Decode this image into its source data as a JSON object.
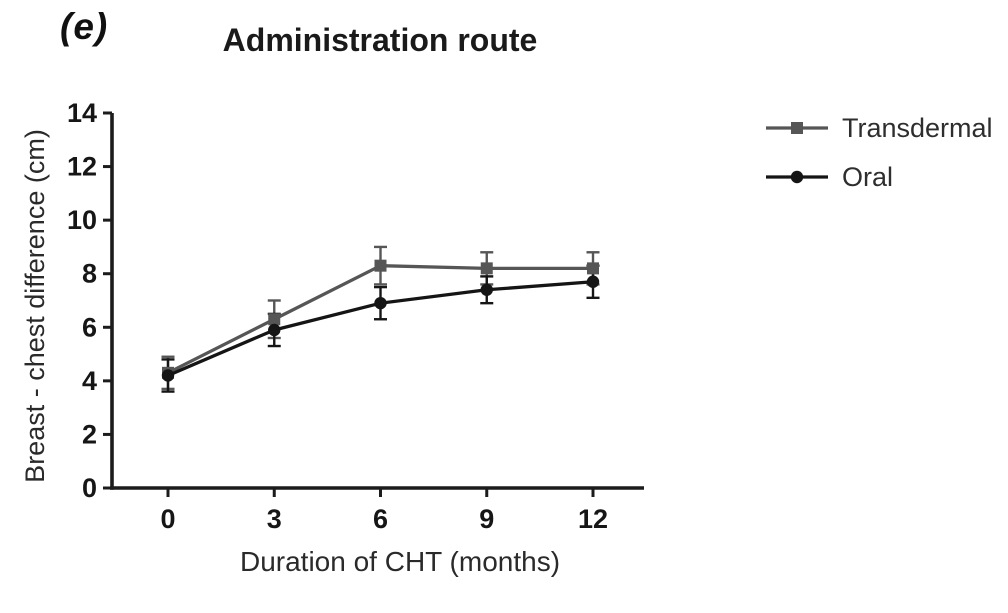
{
  "panel_label": "(e)",
  "title": "Administration route",
  "chart_data": {
    "type": "line",
    "title": "Administration route",
    "xlabel": "Duration of CHT (months)",
    "ylabel": "Breast - chest difference (cm)",
    "x": [
      0,
      3,
      6,
      9,
      12
    ],
    "x_tick_labels": [
      "0",
      "3",
      "6",
      "9",
      "12"
    ],
    "y_ticks": [
      0,
      2,
      4,
      6,
      8,
      10,
      12,
      14
    ],
    "ylim": [
      0,
      14
    ],
    "grid": false,
    "legend_position": "right",
    "axis_color": "#1c1c1c",
    "series": [
      {
        "name": "Transdermal",
        "marker": "square",
        "color": "#565656",
        "values": [
          4.3,
          6.3,
          8.3,
          8.2,
          8.2
        ],
        "errors": [
          0.6,
          0.7,
          0.7,
          0.6,
          0.6
        ]
      },
      {
        "name": "Oral",
        "marker": "circle",
        "color": "#151515",
        "values": [
          4.2,
          5.9,
          6.9,
          7.4,
          7.7
        ],
        "errors": [
          0.6,
          0.6,
          0.6,
          0.5,
          0.6
        ]
      }
    ]
  }
}
